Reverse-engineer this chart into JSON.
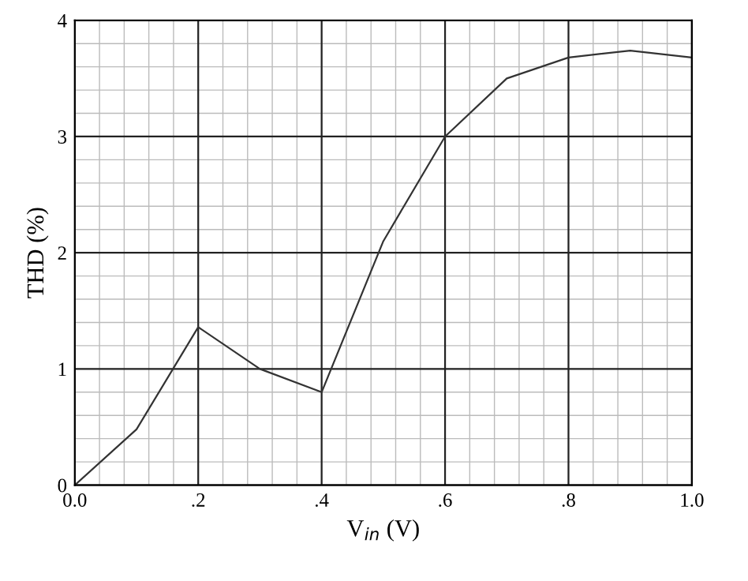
{
  "chart_data": {
    "type": "line",
    "xlabel": "V$_{in}$ (V)",
    "ylabel": "THD (%)",
    "x": [
      0.0,
      0.1,
      0.2,
      0.3,
      0.4,
      0.5,
      0.6,
      0.7,
      0.8,
      0.9,
      1.0
    ],
    "series": [
      {
        "color": "#333333",
        "values": [
          0,
          0.48,
          1.36,
          1.0,
          0.8,
          2.1,
          3.0,
          3.5,
          3.68,
          3.74,
          3.68
        ]
      }
    ],
    "xlim": [
      0,
      1
    ],
    "ylim": [
      0,
      4
    ],
    "xticks": [
      {
        "value": 0,
        "label": "0.0"
      },
      {
        "value": 0.2,
        "label": ".2"
      },
      {
        "value": 0.4,
        "label": ".4"
      },
      {
        "value": 0.6,
        "label": ".6"
      },
      {
        "value": 0.8,
        "label": ".8"
      },
      {
        "value": 1.0,
        "label": "1.0"
      }
    ],
    "yticks": [
      0,
      1,
      2,
      3,
      4
    ],
    "grid": true,
    "marker": "none",
    "line_style": "solid"
  }
}
